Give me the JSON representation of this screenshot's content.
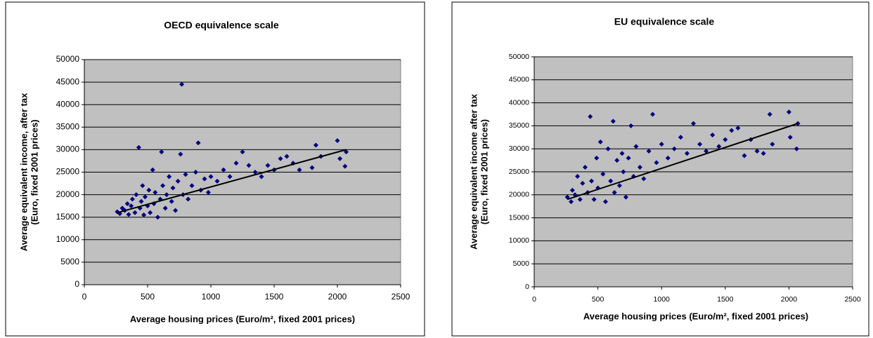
{
  "chart_data": [
    {
      "type": "scatter",
      "title": "OECD equivalence scale",
      "xlabel": "Average housing prices (Euro/m², fixed 2001 prices)",
      "ylabel": [
        "Average equivalent income, after tax",
        "(Euro, fixed 2001 prices)"
      ],
      "xlim": [
        0,
        2500
      ],
      "xticks": [
        0,
        500,
        1000,
        1500,
        2000,
        2500
      ],
      "ylim": [
        0,
        50000
      ],
      "yticks": [
        0,
        5000,
        10000,
        15000,
        20000,
        25000,
        30000,
        35000,
        40000,
        45000,
        50000
      ],
      "grid": true,
      "series": [
        {
          "color": "#000080",
          "x": [
            260,
            280,
            300,
            320,
            340,
            350,
            370,
            380,
            400,
            410,
            430,
            440,
            450,
            460,
            470,
            480,
            500,
            510,
            520,
            540,
            550,
            560,
            580,
            600,
            610,
            620,
            640,
            650,
            670,
            690,
            700,
            720,
            740,
            760,
            770,
            780,
            800,
            820,
            850,
            880,
            900,
            920,
            950,
            980,
            1000,
            1050,
            1100,
            1150,
            1200,
            1250,
            1300,
            1350,
            1400,
            1450,
            1500,
            1550,
            1600,
            1650,
            1700,
            1800,
            1830,
            1870,
            2000,
            2020,
            2060,
            2070
          ],
          "values": [
            16200,
            15800,
            17000,
            16500,
            18000,
            15600,
            17500,
            19000,
            16000,
            20000,
            30500,
            17000,
            18500,
            22000,
            15500,
            19500,
            17500,
            21000,
            16000,
            25500,
            18000,
            20500,
            15000,
            19000,
            29500,
            22000,
            17000,
            20000,
            24000,
            18500,
            21500,
            16500,
            23000,
            29000,
            44500,
            20000,
            24500,
            19000,
            22000,
            25000,
            31500,
            21000,
            23500,
            20500,
            24000,
            23000,
            25500,
            24000,
            27000,
            29500,
            26500,
            25000,
            24000,
            26500,
            25500,
            28000,
            28500,
            27000,
            25500,
            26000,
            31000,
            28500,
            32000,
            28000,
            26300,
            29500
          ]
        }
      ],
      "trendline": {
        "color": "#000000",
        "x": [
          260,
          2070
        ],
        "values": [
          16000,
          30000
        ]
      }
    },
    {
      "type": "scatter",
      "title": "EU equivalence scale",
      "xlabel": "Average housing prices (Euro/m², fixed 2001 prices)",
      "ylabel": [
        "Average equivalent income after tax",
        "(Euro, fixed 2001 prices)"
      ],
      "xlim": [
        0,
        2500
      ],
      "xticks": [
        0,
        500,
        1000,
        1500,
        2000,
        2500
      ],
      "ylim": [
        0,
        50000
      ],
      "yticks": [
        0,
        5000,
        10000,
        15000,
        20000,
        25000,
        30000,
        35000,
        40000,
        45000,
        50000
      ],
      "grid": true,
      "series": [
        {
          "color": "#000080",
          "x": [
            260,
            290,
            300,
            320,
            340,
            360,
            380,
            400,
            420,
            440,
            450,
            470,
            490,
            500,
            520,
            540,
            560,
            580,
            600,
            620,
            630,
            650,
            670,
            690,
            700,
            720,
            740,
            760,
            780,
            800,
            830,
            860,
            900,
            930,
            960,
            1000,
            1050,
            1100,
            1150,
            1200,
            1250,
            1300,
            1350,
            1400,
            1450,
            1500,
            1550,
            1600,
            1650,
            1700,
            1750,
            1800,
            1850,
            1870,
            2000,
            2010,
            2060,
            2070
          ],
          "values": [
            19500,
            18500,
            21000,
            20000,
            24000,
            19000,
            22500,
            26000,
            20500,
            37000,
            23000,
            19000,
            28000,
            21500,
            31500,
            24500,
            18500,
            30000,
            23000,
            36000,
            20500,
            27500,
            22000,
            29000,
            25000,
            19500,
            28000,
            35000,
            24000,
            30500,
            26000,
            23500,
            29500,
            37500,
            27000,
            31000,
            28000,
            30000,
            32500,
            29000,
            35500,
            31000,
            29500,
            33000,
            30500,
            32000,
            34000,
            34500,
            28500,
            32000,
            29500,
            29000,
            37500,
            31000,
            38000,
            32500,
            30000,
            35500
          ]
        }
      ],
      "trendline": {
        "color": "#000000",
        "x": [
          260,
          2070
        ],
        "values": [
          19000,
          35500
        ]
      }
    }
  ]
}
